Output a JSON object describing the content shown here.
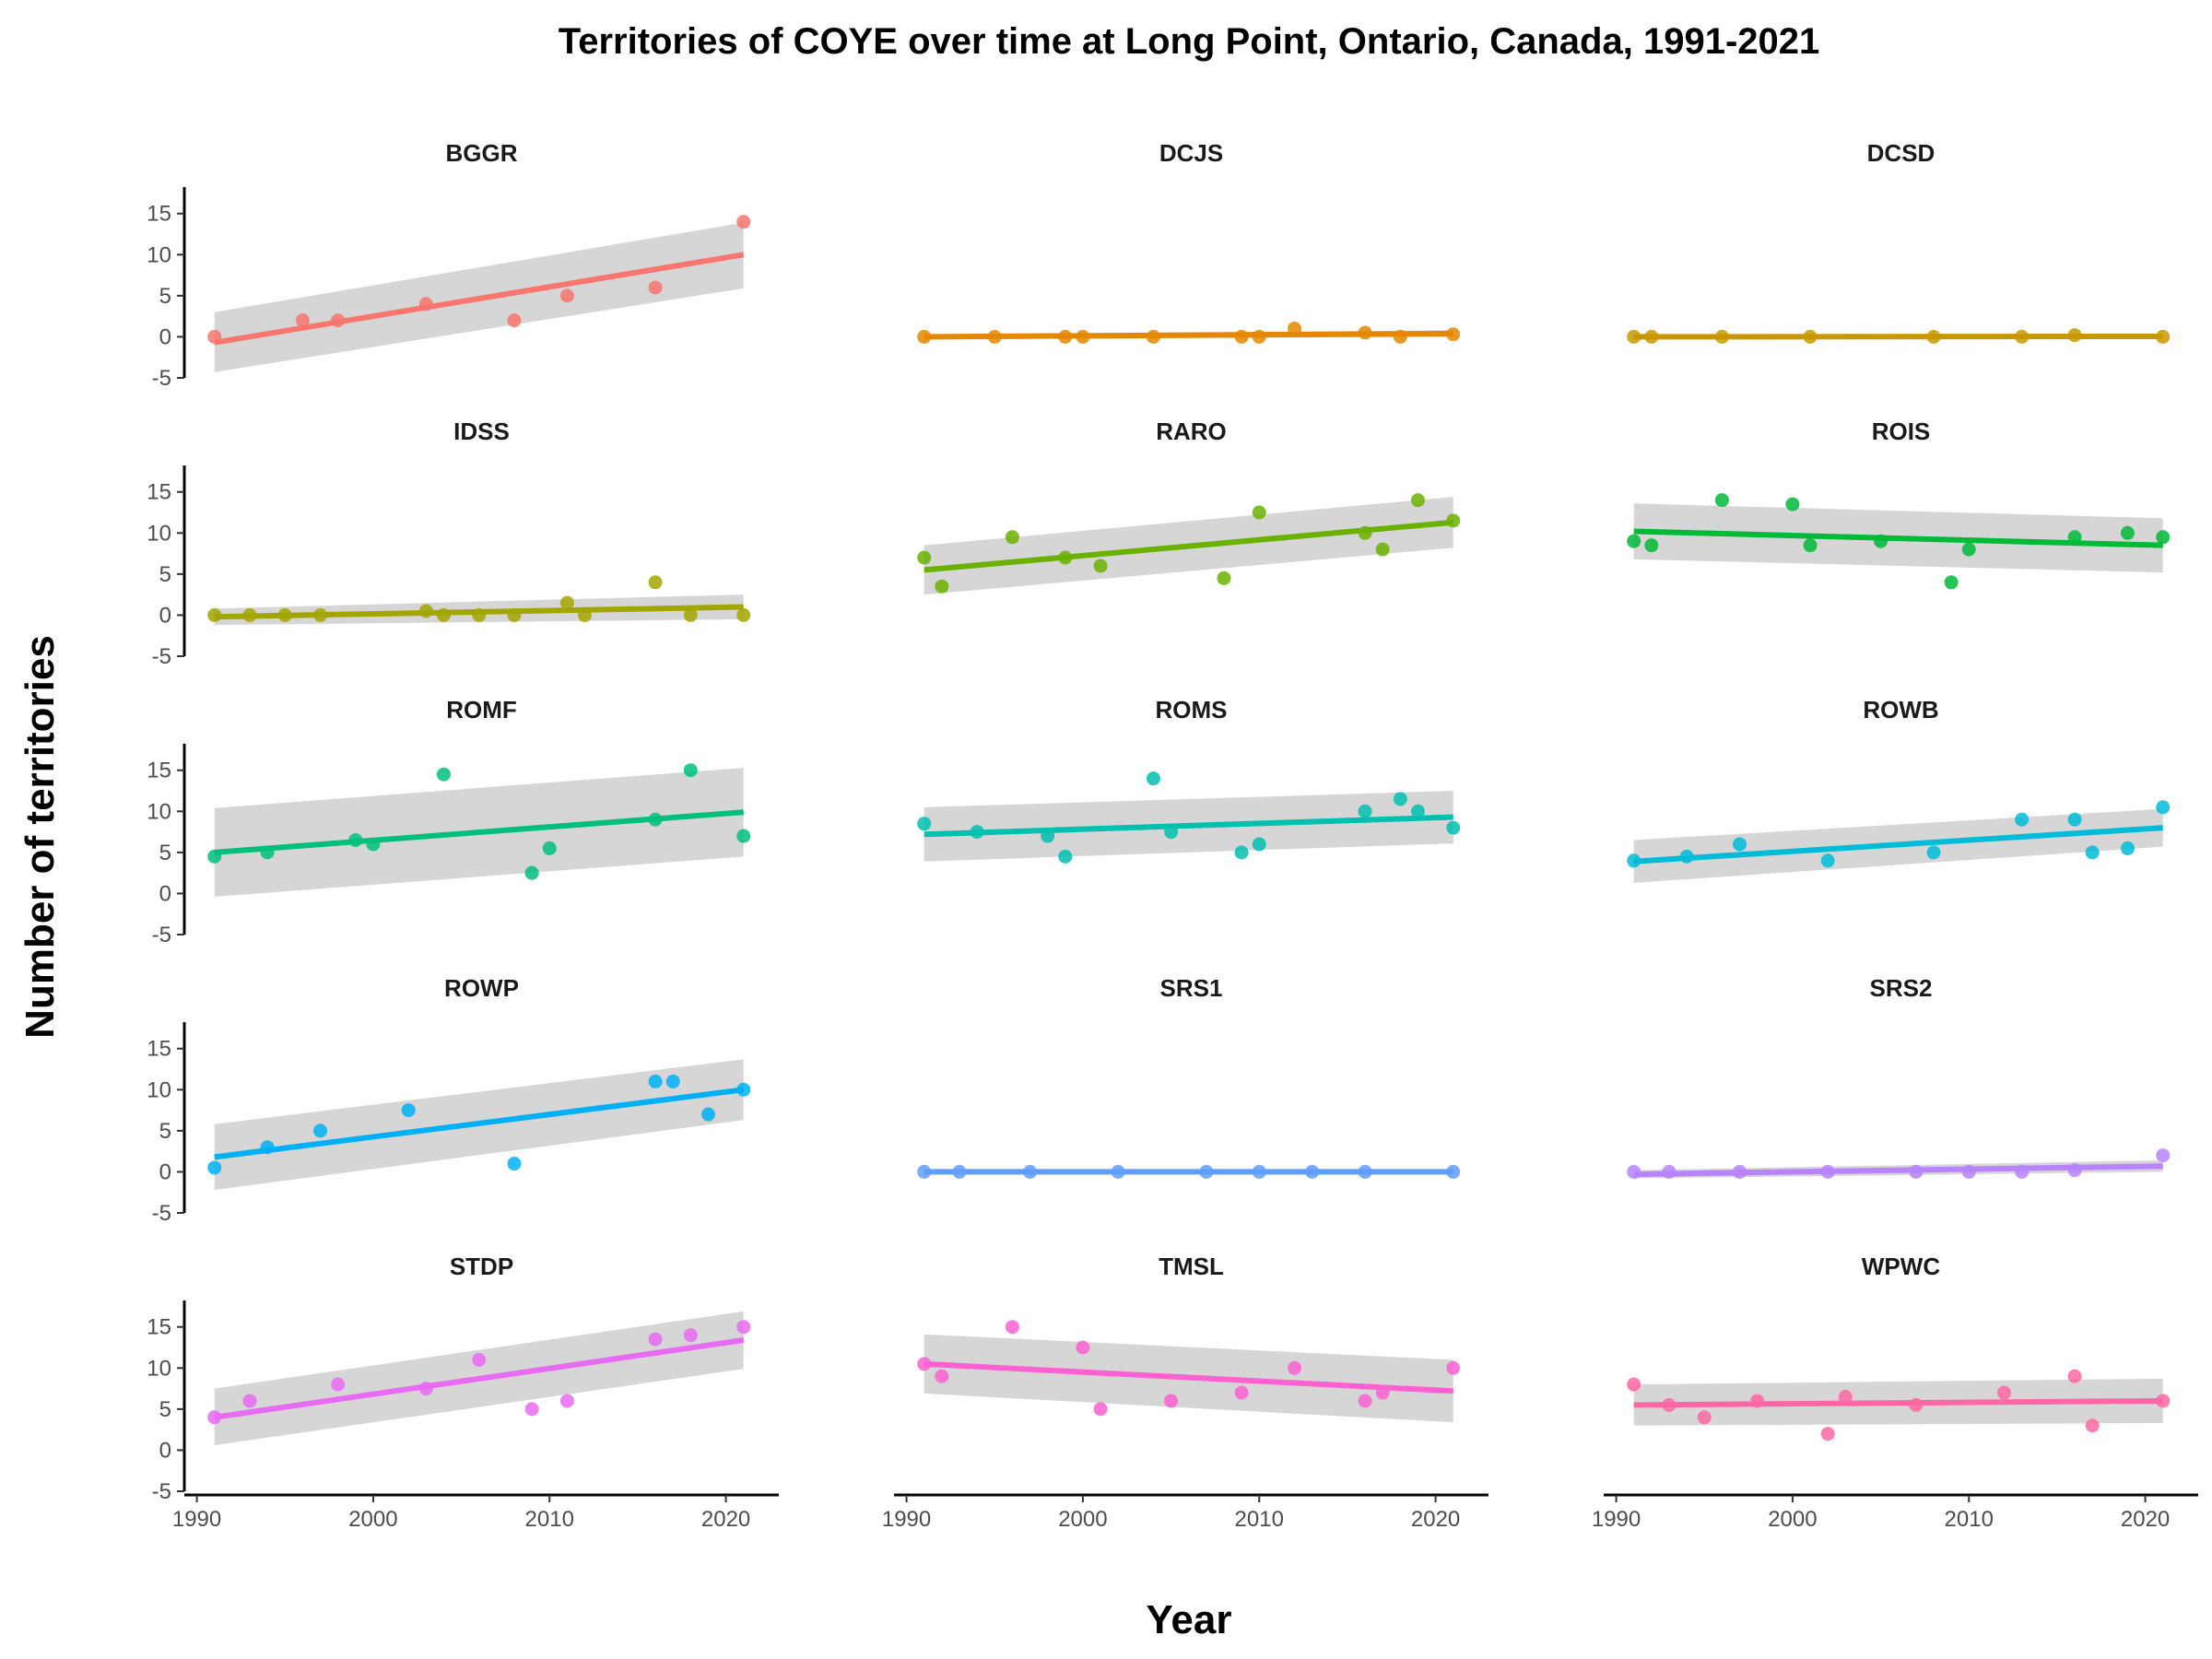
{
  "chart_data": {
    "type": "scatter",
    "title": "Territories of COYE over time at Long Point, Ontario, Canada, 1991-2021",
    "xlabel": "Year",
    "ylabel": "Number of territories",
    "xlim": [
      1989.5,
      2023
    ],
    "ylim": [
      -5,
      18
    ],
    "x_ticks": [
      1990,
      2000,
      2010,
      2020
    ],
    "y_ticks": [
      -5,
      0,
      5,
      10,
      15
    ],
    "smooth": "linear regression with 95% confidence band",
    "grid": false,
    "legend": "none",
    "panels": [
      {
        "name": "BGGR",
        "color": "#F8766D",
        "points": [
          [
            1991,
            0
          ],
          [
            1996,
            2
          ],
          [
            1998,
            2
          ],
          [
            2003,
            4
          ],
          [
            2008,
            2
          ],
          [
            2011,
            5
          ],
          [
            2016,
            6
          ],
          [
            2021,
            14
          ]
        ],
        "fit": [
          [
            1991,
            -0.7
          ],
          [
            2021,
            10
          ]
        ],
        "band_lo": [
          -4.3,
          5.9
        ],
        "band_hi": [
          3,
          13.9
        ]
      },
      {
        "name": "DCJS",
        "color": "#E58700",
        "points": [
          [
            1991,
            0
          ],
          [
            1995,
            0
          ],
          [
            1999,
            0
          ],
          [
            2000,
            0
          ],
          [
            2004,
            0
          ],
          [
            2009,
            0
          ],
          [
            2010,
            0
          ],
          [
            2012,
            1
          ],
          [
            2016,
            0.5
          ],
          [
            2018,
            0
          ],
          [
            2021,
            0.3
          ]
        ],
        "fit": [
          [
            1991,
            0
          ],
          [
            2021,
            0.4
          ]
        ],
        "band_lo": [
          -0.3,
          0
        ],
        "band_hi": [
          0.3,
          0.8
        ]
      },
      {
        "name": "DCSD",
        "color": "#C99800",
        "points": [
          [
            1991,
            0
          ],
          [
            1992,
            0
          ],
          [
            1996,
            0
          ],
          [
            2001,
            0
          ],
          [
            2008,
            0
          ],
          [
            2013,
            0
          ],
          [
            2016,
            0.2
          ],
          [
            2021,
            0
          ]
        ],
        "fit": [
          [
            1991,
            0
          ],
          [
            2021,
            0.05
          ]
        ],
        "band_lo": [
          -0.15,
          -0.1
        ],
        "band_hi": [
          0.15,
          0.2
        ]
      },
      {
        "name": "IDSS",
        "color": "#A3A500",
        "points": [
          [
            1991,
            0
          ],
          [
            1993,
            0
          ],
          [
            1995,
            0
          ],
          [
            1997,
            0
          ],
          [
            2003,
            0.5
          ],
          [
            2004,
            0
          ],
          [
            2006,
            0
          ],
          [
            2008,
            0
          ],
          [
            2011,
            1.5
          ],
          [
            2012,
            0
          ],
          [
            2016,
            4
          ],
          [
            2018,
            0
          ],
          [
            2021,
            0
          ]
        ],
        "fit": [
          [
            1991,
            -0.2
          ],
          [
            2021,
            1
          ]
        ],
        "band_lo": [
          -1.2,
          -0.5
        ],
        "band_hi": [
          0.8,
          2.5
        ]
      },
      {
        "name": "RARO",
        "color": "#6BB100",
        "points": [
          [
            1991,
            7
          ],
          [
            1992,
            3.5
          ],
          [
            1996,
            9.5
          ],
          [
            1999,
            7
          ],
          [
            2001,
            6
          ],
          [
            2008,
            4.5
          ],
          [
            2010,
            12.5
          ],
          [
            2016,
            10
          ],
          [
            2017,
            8
          ],
          [
            2019,
            14
          ],
          [
            2021,
            11.5
          ]
        ],
        "fit": [
          [
            1991,
            5.5
          ],
          [
            2021,
            11.3
          ]
        ],
        "band_lo": [
          2.5,
          8.2
        ],
        "band_hi": [
          8.5,
          14.4
        ]
      },
      {
        "name": "ROIS",
        "color": "#00BA38",
        "points": [
          [
            1991,
            9
          ],
          [
            1992,
            8.5
          ],
          [
            1996,
            14
          ],
          [
            2000,
            13.5
          ],
          [
            2001,
            8.5
          ],
          [
            2005,
            9
          ],
          [
            2009,
            4
          ],
          [
            2010,
            8
          ],
          [
            2016,
            9.5
          ],
          [
            2019,
            10
          ],
          [
            2021,
            9.5
          ]
        ],
        "fit": [
          [
            1991,
            10.2
          ],
          [
            2021,
            8.5
          ]
        ],
        "band_lo": [
          6.8,
          5.2
        ],
        "band_hi": [
          13.6,
          11.8
        ]
      },
      {
        "name": "ROMF",
        "color": "#00BF7D",
        "points": [
          [
            1991,
            4.5
          ],
          [
            1994,
            5
          ],
          [
            1999,
            6.5
          ],
          [
            2000,
            6
          ],
          [
            2004,
            14.5
          ],
          [
            2009,
            2.5
          ],
          [
            2010,
            5.5
          ],
          [
            2016,
            9
          ],
          [
            2018,
            15
          ],
          [
            2021,
            7
          ]
        ],
        "fit": [
          [
            1991,
            5
          ],
          [
            2021,
            9.9
          ]
        ],
        "band_lo": [
          -0.4,
          4.5
        ],
        "band_hi": [
          10.4,
          15.3
        ]
      },
      {
        "name": "ROMS",
        "color": "#00C0AF",
        "points": [
          [
            1991,
            8.5
          ],
          [
            1994,
            7.5
          ],
          [
            1998,
            7
          ],
          [
            1999,
            4.5
          ],
          [
            2004,
            14
          ],
          [
            2005,
            7.5
          ],
          [
            2009,
            5
          ],
          [
            2010,
            6
          ],
          [
            2016,
            10
          ],
          [
            2018,
            11.5
          ],
          [
            2019,
            10
          ],
          [
            2021,
            8
          ]
        ],
        "fit": [
          [
            1991,
            7.2
          ],
          [
            2021,
            9.3
          ]
        ],
        "band_lo": [
          3.9,
          6.1
        ],
        "band_hi": [
          10.5,
          12.5
        ]
      },
      {
        "name": "ROWB",
        "color": "#00BCD8",
        "points": [
          [
            1991,
            4
          ],
          [
            1994,
            4.5
          ],
          [
            1997,
            6
          ],
          [
            2002,
            4
          ],
          [
            2008,
            5
          ],
          [
            2013,
            9
          ],
          [
            2016,
            9
          ],
          [
            2017,
            5
          ],
          [
            2019,
            5.5
          ],
          [
            2021,
            10.5
          ]
        ],
        "fit": [
          [
            1991,
            3.9
          ],
          [
            2021,
            8
          ]
        ],
        "band_lo": [
          1.3,
          5.7
        ],
        "band_hi": [
          6.5,
          10.3
        ]
      },
      {
        "name": "ROWP",
        "color": "#00B0F6",
        "points": [
          [
            1991,
            0.5
          ],
          [
            1994,
            3
          ],
          [
            1997,
            5
          ],
          [
            2002,
            7.5
          ],
          [
            2008,
            1
          ],
          [
            2016,
            11
          ],
          [
            2017,
            11
          ],
          [
            2019,
            7
          ],
          [
            2021,
            10
          ]
        ],
        "fit": [
          [
            1991,
            1.8
          ],
          [
            2021,
            10
          ]
        ],
        "band_lo": [
          -2.2,
          6.3
        ],
        "band_hi": [
          5.8,
          13.7
        ]
      },
      {
        "name": "SRS1",
        "color": "#619CFF",
        "points": [
          [
            1991,
            0
          ],
          [
            1993,
            0
          ],
          [
            1997,
            0
          ],
          [
            2002,
            0
          ],
          [
            2007,
            0
          ],
          [
            2010,
            0
          ],
          [
            2013,
            0
          ],
          [
            2016,
            0
          ],
          [
            2021,
            0
          ]
        ],
        "fit": [
          [
            1991,
            0
          ],
          [
            2021,
            0
          ]
        ],
        "band_lo": [
          0,
          0
        ],
        "band_hi": [
          0,
          0
        ]
      },
      {
        "name": "SRS2",
        "color": "#B983FF",
        "points": [
          [
            1991,
            0
          ],
          [
            1993,
            0
          ],
          [
            1997,
            0
          ],
          [
            2002,
            0
          ],
          [
            2007,
            0
          ],
          [
            2010,
            0
          ],
          [
            2013,
            0
          ],
          [
            2016,
            0.2
          ],
          [
            2021,
            2
          ]
        ],
        "fit": [
          [
            1991,
            -0.3
          ],
          [
            2021,
            0.7
          ]
        ],
        "band_lo": [
          -0.8,
          0
        ],
        "band_hi": [
          0.2,
          1.4
        ]
      },
      {
        "name": "STDP",
        "color": "#E76BF3",
        "points": [
          [
            1991,
            4
          ],
          [
            1993,
            6
          ],
          [
            1998,
            8
          ],
          [
            2003,
            7.5
          ],
          [
            2006,
            11
          ],
          [
            2009,
            5
          ],
          [
            2011,
            6
          ],
          [
            2016,
            13.5
          ],
          [
            2018,
            14
          ],
          [
            2021,
            15
          ]
        ],
        "fit": [
          [
            1991,
            4
          ],
          [
            2021,
            13.4
          ]
        ],
        "band_lo": [
          0.6,
          9.9
        ],
        "band_hi": [
          7.5,
          16.9
        ]
      },
      {
        "name": "TMSL",
        "color": "#FD61D1",
        "points": [
          [
            1991,
            10.5
          ],
          [
            1992,
            9
          ],
          [
            1996,
            15
          ],
          [
            2000,
            12.5
          ],
          [
            2001,
            5
          ],
          [
            2005,
            6
          ],
          [
            2009,
            7
          ],
          [
            2012,
            10
          ],
          [
            2016,
            6
          ],
          [
            2017,
            7
          ],
          [
            2021,
            10
          ]
        ],
        "fit": [
          [
            1991,
            10.5
          ],
          [
            2021,
            7.2
          ]
        ],
        "band_lo": [
          6.9,
          3.4
        ],
        "band_hi": [
          14.1,
          11
        ]
      },
      {
        "name": "WPWC",
        "color": "#FF67A4",
        "points": [
          [
            1991,
            8
          ],
          [
            1993,
            5.5
          ],
          [
            1995,
            4
          ],
          [
            1998,
            6
          ],
          [
            2002,
            2
          ],
          [
            2003,
            6.5
          ],
          [
            2007,
            5.5
          ],
          [
            2012,
            7
          ],
          [
            2016,
            9
          ],
          [
            2017,
            3
          ],
          [
            2021,
            6
          ]
        ],
        "fit": [
          [
            1991,
            5.5
          ],
          [
            2021,
            6
          ]
        ],
        "band_lo": [
          3,
          3.3
        ],
        "band_hi": [
          8,
          8.7
        ]
      }
    ]
  }
}
